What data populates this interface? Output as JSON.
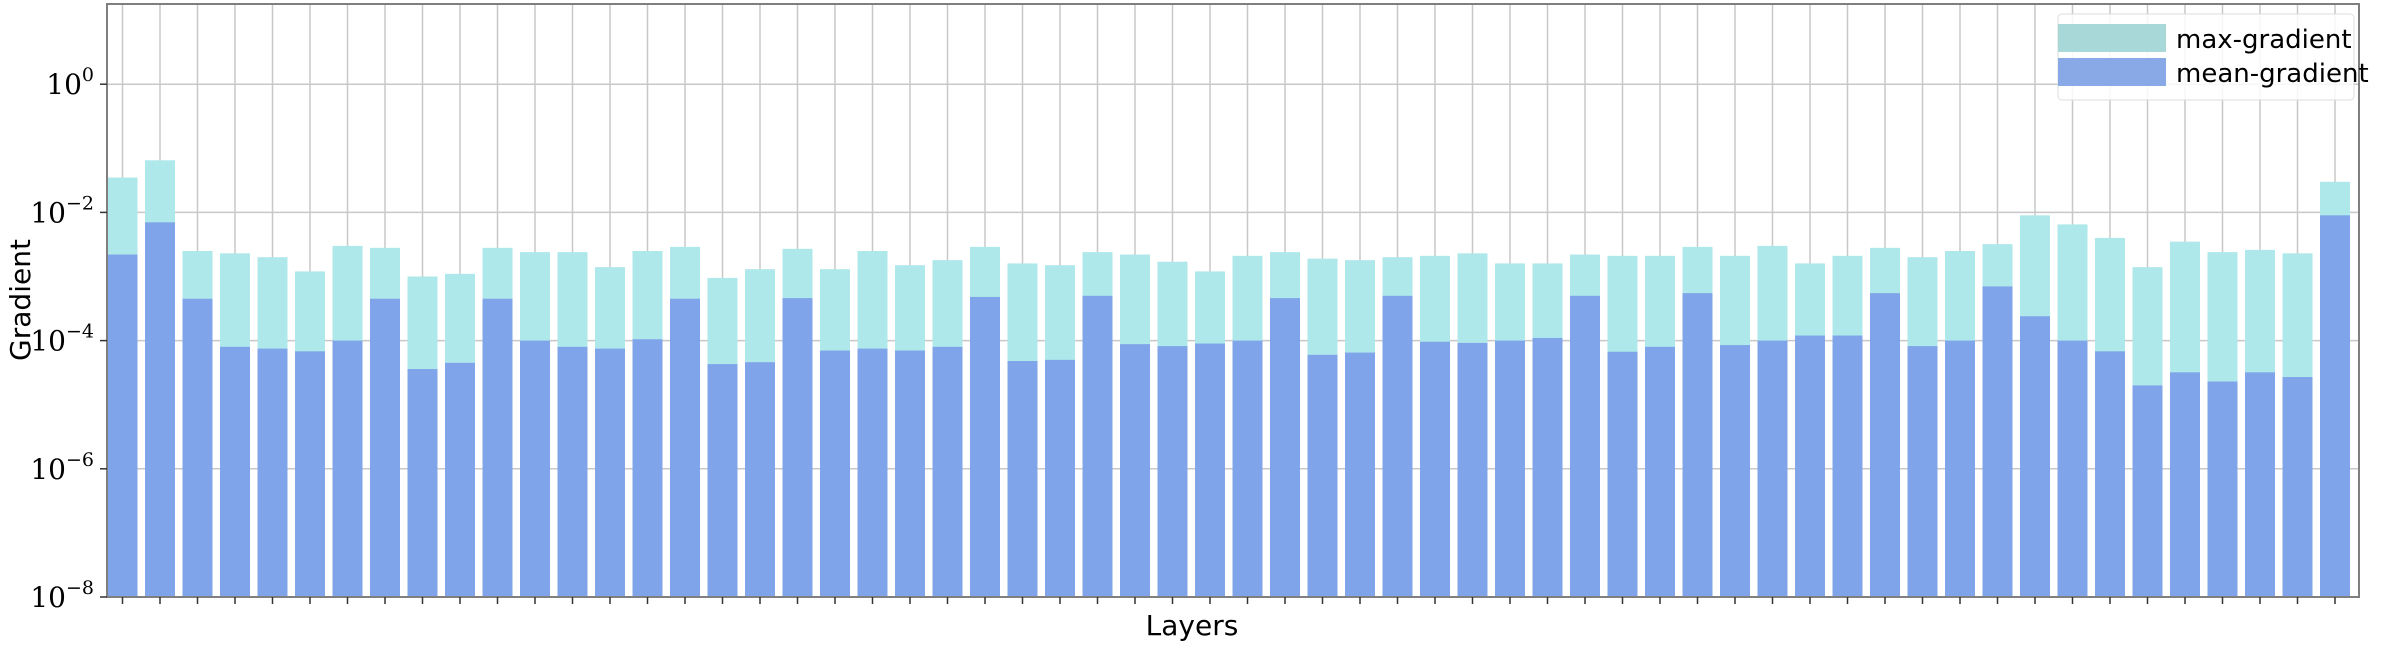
{
  "chart_data": {
    "type": "bar",
    "title": "",
    "xlabel": "Layers",
    "ylabel": "Gradient",
    "yscale": "log",
    "ylim": [
      1e-08,
      100
    ],
    "y_ticks": [
      {
        "value": 1,
        "base": "10",
        "exp": "0"
      },
      {
        "value": 0.01,
        "base": "10",
        "exp": "−2"
      },
      {
        "value": 0.0001,
        "base": "10",
        "exp": "−4"
      },
      {
        "value": 1e-06,
        "base": "10",
        "exp": "−6"
      },
      {
        "value": 1e-08,
        "base": "10",
        "exp": "−8"
      }
    ],
    "grid": true,
    "legend_position": "top-right",
    "bar_count": 60,
    "series": [
      {
        "name": "max-gradient",
        "color": "#aee8ea",
        "legend_color": "#a9d8d8",
        "values": [
          0.035,
          0.065,
          0.0025,
          0.0023,
          0.002,
          0.0012,
          0.003,
          0.0028,
          0.001,
          0.0011,
          0.0028,
          0.0024,
          0.0024,
          0.0014,
          0.0025,
          0.0029,
          0.00095,
          0.0013,
          0.0027,
          0.0013,
          0.0025,
          0.0015,
          0.0018,
          0.0029,
          0.0016,
          0.0015,
          0.0024,
          0.0022,
          0.0017,
          0.0012,
          0.0021,
          0.0024,
          0.0019,
          0.0018,
          0.002,
          0.0021,
          0.0023,
          0.0016,
          0.0016,
          0.0022,
          0.0021,
          0.0021,
          0.0029,
          0.0021,
          0.003,
          0.0016,
          0.0021,
          0.0028,
          0.002,
          0.0025,
          0.0032,
          0.009,
          0.0065,
          0.004,
          0.0014,
          0.0035,
          0.0024,
          0.0026,
          0.0023,
          0.03
        ]
      },
      {
        "name": "mean-gradient",
        "color": "#7fa4ea",
        "legend_color": "#88a8e6",
        "values": [
          0.0022,
          0.007,
          0.00045,
          8e-05,
          7.5e-05,
          6.8e-05,
          0.0001,
          0.00045,
          3.6e-05,
          4.5e-05,
          0.00045,
          0.0001,
          8e-05,
          7.5e-05,
          0.000105,
          0.00045,
          4.3e-05,
          4.6e-05,
          0.00046,
          7e-05,
          7.5e-05,
          7e-05,
          8e-05,
          0.00048,
          4.8e-05,
          5e-05,
          0.0005,
          8.8e-05,
          8.2e-05,
          9e-05,
          0.0001,
          0.00046,
          6e-05,
          6.5e-05,
          0.0005,
          9.6e-05,
          9.2e-05,
          0.0001,
          0.00011,
          0.0005,
          6.7e-05,
          8e-05,
          0.00055,
          8.5e-05,
          0.0001,
          0.00012,
          0.00012,
          0.00055,
          8.2e-05,
          0.0001,
          0.0007,
          0.00024,
          0.0001,
          6.8e-05,
          2e-05,
          3.2e-05,
          2.3e-05,
          3.2e-05,
          2.7e-05,
          0.009
        ]
      }
    ]
  }
}
